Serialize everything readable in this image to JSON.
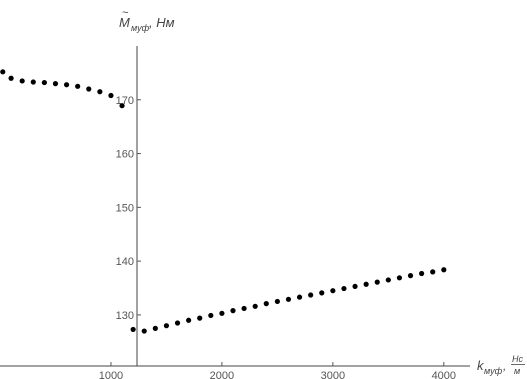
{
  "chart_data": {
    "type": "scatter",
    "title": "",
    "ylabel": {
      "symbol": "M",
      "accent": "~",
      "subscript": "муф",
      "unit": ", Нм"
    },
    "xlabel": {
      "symbol": "k",
      "subscript": "муф",
      "sep": ", ",
      "frac_num": "Нс",
      "frac_den": "м"
    },
    "xlim": [
      0,
      4200
    ],
    "ylim": [
      120.5,
      180
    ],
    "x_ticks": [
      1000,
      2000,
      3000,
      4000
    ],
    "y_ticks": [
      130,
      140,
      150,
      160,
      170
    ],
    "grid": false,
    "legend": "none",
    "point_color": "#000000",
    "series": [
      {
        "points": [
          [
            25,
            175.2
          ],
          [
            100,
            174.0
          ],
          [
            200,
            173.5
          ],
          [
            300,
            173.3
          ],
          [
            400,
            173.2
          ],
          [
            500,
            173.0
          ],
          [
            600,
            172.8
          ],
          [
            700,
            172.5
          ],
          [
            800,
            172.0
          ],
          [
            900,
            171.5
          ],
          [
            1000,
            170.8
          ],
          [
            1100,
            168.9
          ],
          [
            1200,
            127.3
          ],
          [
            1300,
            127.0
          ],
          [
            1400,
            127.5
          ],
          [
            1500,
            128.0
          ],
          [
            1600,
            128.5
          ],
          [
            1700,
            129.0
          ],
          [
            1800,
            129.4
          ],
          [
            1900,
            129.9
          ],
          [
            2000,
            130.3
          ],
          [
            2100,
            130.8
          ],
          [
            2200,
            131.2
          ],
          [
            2300,
            131.6
          ],
          [
            2400,
            132.1
          ],
          [
            2500,
            132.5
          ],
          [
            2600,
            132.9
          ],
          [
            2700,
            133.3
          ],
          [
            2800,
            133.7
          ],
          [
            2900,
            134.1
          ],
          [
            3000,
            134.5
          ],
          [
            3100,
            134.9
          ],
          [
            3200,
            135.3
          ],
          [
            3300,
            135.7
          ],
          [
            3400,
            136.1
          ],
          [
            3500,
            136.5
          ],
          [
            3600,
            136.9
          ],
          [
            3700,
            137.3
          ],
          [
            3800,
            137.7
          ],
          [
            3900,
            138.0
          ],
          [
            4000,
            138.4
          ]
        ]
      }
    ]
  }
}
